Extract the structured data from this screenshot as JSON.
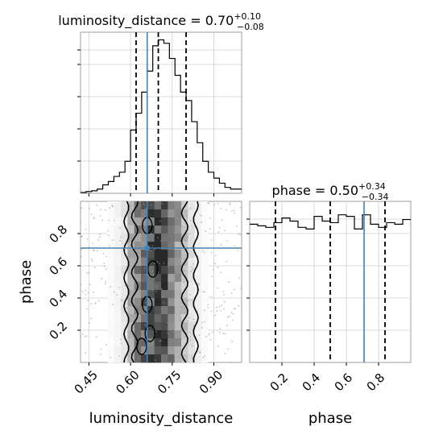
{
  "chart_data": {
    "type": "corner",
    "truth_color": "#4682b4",
    "panels": [
      {
        "panel": "luminosity_distance-1d",
        "type": "histogram",
        "title_param": "luminosity_distance",
        "title_value": "0.70",
        "title_plus": "+0.10",
        "title_minus": "−0.08",
        "xlim": [
          0.42,
          1.0
        ],
        "bin_edges": [
          0.42,
          0.44,
          0.46,
          0.48,
          0.5,
          0.52,
          0.54,
          0.56,
          0.58,
          0.6,
          0.62,
          0.64,
          0.66,
          0.68,
          0.7,
          0.72,
          0.74,
          0.76,
          0.78,
          0.8,
          0.82,
          0.84,
          0.86,
          0.88,
          0.9,
          0.92,
          0.94,
          0.96,
          0.98,
          1.0
        ],
        "counts": [
          1,
          2,
          3,
          5,
          10,
          14,
          20,
          25,
          38,
          75,
          95,
          120,
          145,
          175,
          182,
          178,
          160,
          140,
          120,
          110,
          85,
          60,
          38,
          25,
          18,
          12,
          7,
          5,
          5
        ],
        "quantiles": [
          0.62,
          0.7,
          0.8
        ],
        "truth": 0.66
      },
      {
        "panel": "phase-1d",
        "type": "histogram",
        "title_param": "phase",
        "title_value": "0.50",
        "title_plus": "+0.34",
        "title_minus": "−0.34",
        "xlim": [
          0.0,
          1.0
        ],
        "bin_edges": [
          0.0,
          0.05,
          0.1,
          0.15,
          0.2,
          0.25,
          0.3,
          0.35,
          0.4,
          0.45,
          0.5,
          0.55,
          0.6,
          0.65,
          0.7,
          0.75,
          0.8,
          0.85,
          0.9,
          0.95,
          1.0
        ],
        "counts": [
          0.88,
          0.87,
          0.86,
          0.89,
          0.92,
          0.9,
          0.86,
          0.85,
          0.93,
          0.9,
          0.89,
          0.94,
          0.93,
          0.85,
          0.94,
          0.88,
          0.86,
          0.89,
          0.88,
          0.91
        ],
        "quantiles": [
          0.16,
          0.5,
          0.84
        ],
        "truth": 0.71
      },
      {
        "panel": "2d-luminosity_distance-vs-phase",
        "type": "2d-density",
        "xlim": [
          0.42,
          1.0
        ],
        "ylim": [
          0.0,
          1.0
        ],
        "density_columns": [
          0,
          0,
          0,
          0,
          0.02,
          0.05,
          0.12,
          0.35,
          0.55,
          0.7,
          0.78,
          0.85,
          0.8,
          0.62,
          0.45,
          0.28,
          0.14,
          0.06,
          0.02,
          0,
          0,
          0,
          0,
          0
        ],
        "truth_x": 0.66,
        "truth_y": 0.71
      }
    ],
    "axes": {
      "x_ticks_left": [
        "0.45",
        "0.60",
        "0.75",
        "0.90"
      ],
      "x_tick_values_left": [
        0.45,
        0.6,
        0.75,
        0.9
      ],
      "y_ticks_left": [
        "0.2",
        "0.4",
        "0.6",
        "0.8"
      ],
      "y_tick_values_left": [
        0.2,
        0.4,
        0.6,
        0.8
      ],
      "x_ticks_right": [
        "0.2",
        "0.4",
        "0.6",
        "0.8"
      ],
      "x_tick_values_right": [
        0.2,
        0.4,
        0.6,
        0.8
      ],
      "xlabel_left": "luminosity_distance",
      "xlabel_right": "phase",
      "ylabel_left": "phase"
    }
  }
}
